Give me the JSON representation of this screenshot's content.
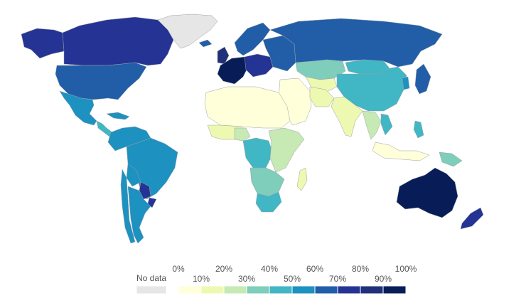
{
  "legend": {
    "no_data_label": "No data",
    "no_data_color": "#e6e6e6",
    "top_labels": [
      "0%",
      "20%",
      "40%",
      "60%",
      "80%",
      "100%"
    ],
    "bottom_labels": [
      "10%",
      "30%",
      "50%",
      "70%",
      "90%"
    ],
    "bins": [
      {
        "range": "0-10%",
        "color": "#ffffd9"
      },
      {
        "range": "10-20%",
        "color": "#edf8b1"
      },
      {
        "range": "20-30%",
        "color": "#c7e9b4"
      },
      {
        "range": "30-40%",
        "color": "#7fcdbb"
      },
      {
        "range": "40-50%",
        "color": "#41b6c4"
      },
      {
        "range": "50-60%",
        "color": "#1d91c0"
      },
      {
        "range": "60-70%",
        "color": "#225ea8"
      },
      {
        "range": "70-80%",
        "color": "#253494"
      },
      {
        "range": "80-90%",
        "color": "#20307a"
      },
      {
        "range": "90-100%",
        "color": "#081d58"
      }
    ]
  },
  "regions": [
    {
      "name": "greenland",
      "bin": "no-data"
    },
    {
      "name": "canada",
      "bin": "70-80%"
    },
    {
      "name": "alaska",
      "bin": "70-80%"
    },
    {
      "name": "united-states",
      "bin": "60-70%"
    },
    {
      "name": "mexico",
      "bin": "50-60%"
    },
    {
      "name": "central-america",
      "bin": "40-50%"
    },
    {
      "name": "caribbean",
      "bin": "50-60%"
    },
    {
      "name": "south-america-north",
      "bin": "50-60%"
    },
    {
      "name": "brazil",
      "bin": "50-60%"
    },
    {
      "name": "bolivia",
      "bin": "50-60%"
    },
    {
      "name": "paraguay",
      "bin": "70-80%"
    },
    {
      "name": "chile",
      "bin": "50-60%"
    },
    {
      "name": "argentina",
      "bin": "50-60%"
    },
    {
      "name": "uruguay",
      "bin": "70-80%"
    },
    {
      "name": "iceland",
      "bin": "60-70%"
    },
    {
      "name": "scandinavia",
      "bin": "60-70%"
    },
    {
      "name": "uk-ireland",
      "bin": "80-90%"
    },
    {
      "name": "western-europe",
      "bin": "90-100%"
    },
    {
      "name": "central-europe",
      "bin": "70-80%"
    },
    {
      "name": "eastern-europe",
      "bin": "60-70%"
    },
    {
      "name": "russia",
      "bin": "60-70%"
    },
    {
      "name": "kazakhstan",
      "bin": "30-40%"
    },
    {
      "name": "central-asia",
      "bin": "10-20%"
    },
    {
      "name": "mongolia",
      "bin": "40-50%"
    },
    {
      "name": "china",
      "bin": "40-50%"
    },
    {
      "name": "korea",
      "bin": "50-60%"
    },
    {
      "name": "japan",
      "bin": "60-70%"
    },
    {
      "name": "middle-east",
      "bin": "0-10%"
    },
    {
      "name": "iran",
      "bin": "10-20%"
    },
    {
      "name": "india",
      "bin": "10-20%"
    },
    {
      "name": "southeast-asia",
      "bin": "20-30%"
    },
    {
      "name": "vietnam",
      "bin": "40-50%"
    },
    {
      "name": "philippines",
      "bin": "40-50%"
    },
    {
      "name": "indonesia",
      "bin": "0-10%"
    },
    {
      "name": "papua-new-guinea",
      "bin": "30-40%"
    },
    {
      "name": "north-africa",
      "bin": "0-10%"
    },
    {
      "name": "west-africa",
      "bin": "10-20%"
    },
    {
      "name": "nigeria",
      "bin": "20-30%"
    },
    {
      "name": "central-africa",
      "bin": "40-50%"
    },
    {
      "name": "east-africa",
      "bin": "20-30%"
    },
    {
      "name": "southern-africa",
      "bin": "30-40%"
    },
    {
      "name": "south-africa",
      "bin": "40-50%"
    },
    {
      "name": "madagascar",
      "bin": "10-20%"
    },
    {
      "name": "australia",
      "bin": "90-100%"
    },
    {
      "name": "new-zealand",
      "bin": "70-80%"
    }
  ]
}
